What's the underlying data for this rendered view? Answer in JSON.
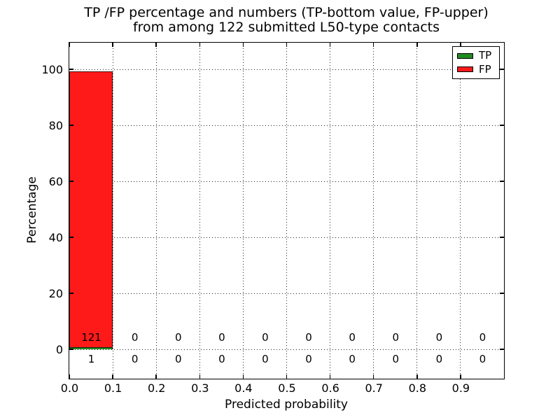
{
  "chart_data": {
    "type": "bar",
    "title_line1": "TP /FP percentage and numbers (TP-bottom value, FP-upper)",
    "title_line2": "from among 122 submitted L50-type contacts",
    "xlabel": "Predicted probability",
    "ylabel": "Percentage",
    "total_submitted_contacts": 122,
    "xlim": [
      0.0,
      1.0
    ],
    "ylim": [
      -10.5,
      109.5
    ],
    "xticks": [
      0.0,
      0.1,
      0.2,
      0.3,
      0.4,
      0.5,
      0.6,
      0.7,
      0.8,
      0.9
    ],
    "xtick_labels": [
      "0.0",
      "0.1",
      "0.2",
      "0.3",
      "0.4",
      "0.5",
      "0.6",
      "0.7",
      "0.8",
      "0.9"
    ],
    "yticks": [
      0,
      20,
      40,
      60,
      80,
      100
    ],
    "ytick_labels": [
      "0",
      "20",
      "40",
      "60",
      "80",
      "100"
    ],
    "bin_edges": [
      0.0,
      0.1,
      0.2,
      0.3,
      0.4,
      0.5,
      0.6,
      0.7,
      0.8,
      0.9,
      1.0
    ],
    "grid": {
      "visible": true,
      "linestyle": "dotted"
    },
    "series": [
      {
        "name": "TP",
        "color": "#228b22",
        "counts": [
          1,
          0,
          0,
          0,
          0,
          0,
          0,
          0,
          0,
          0
        ],
        "percents": [
          0.8197,
          0,
          0,
          0,
          0,
          0,
          0,
          0,
          0,
          0
        ]
      },
      {
        "name": "FP",
        "color": "#ff1a1a",
        "counts": [
          121,
          0,
          0,
          0,
          0,
          0,
          0,
          0,
          0,
          0
        ],
        "percents": [
          99.1803,
          0,
          0,
          0,
          0,
          0,
          0,
          0,
          0,
          0
        ]
      }
    ],
    "legend": {
      "position": "upper right",
      "entries": [
        {
          "label": "TP",
          "color": "#228b22"
        },
        {
          "label": "FP",
          "color": "#ff1a1a"
        }
      ]
    },
    "colors": {
      "background": "#ffffff",
      "axes": "#000000",
      "grid": "#000000",
      "text": "#000000"
    }
  }
}
